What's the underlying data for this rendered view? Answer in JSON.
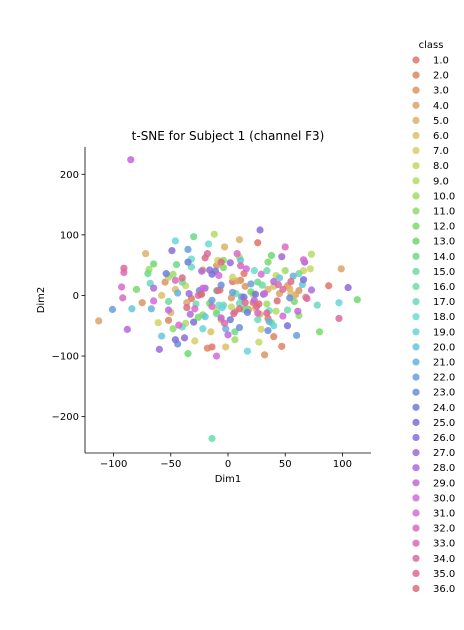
{
  "chart_data": {
    "type": "scatter",
    "title": "t-SNE for Subject 1 (channel F3)",
    "xlabel": "Dim1",
    "ylabel": "Dim2",
    "xlim": [
      -125,
      125
    ],
    "ylim": [
      -260,
      245
    ],
    "xticks": [
      -100,
      -50,
      0,
      50,
      100
    ],
    "yticks": [
      -200,
      -100,
      0,
      100,
      200
    ],
    "grid": false,
    "legend": {
      "title": "class",
      "placement": "right",
      "entries": [
        "1.0",
        "2.0",
        "3.0",
        "4.0",
        "5.0",
        "6.0",
        "7.0",
        "8.0",
        "9.0",
        "10.0",
        "11.0",
        "12.0",
        "13.0",
        "14.0",
        "15.0",
        "16.0",
        "17.0",
        "18.0",
        "19.0",
        "20.0",
        "21.0",
        "22.0",
        "23.0",
        "24.0",
        "25.0",
        "26.0",
        "27.0",
        "28.0",
        "29.0",
        "30.0",
        "31.0",
        "32.0",
        "33.0",
        "34.0",
        "35.0",
        "36.0"
      ],
      "colors": [
        "#e1746a",
        "#dd8560",
        "#da9563",
        "#dca269",
        "#dcb268",
        "#dac266",
        "#d3d168",
        "#c6d868",
        "#b3db66",
        "#9fdc66",
        "#8bdd68",
        "#7ad96b",
        "#6dd873",
        "#6bd98a",
        "#6dd99c",
        "#6ddcad",
        "#6ad9bf",
        "#6adccf",
        "#67d5dc",
        "#66c6dc",
        "#66b3da",
        "#67a0da",
        "#6a8ddb",
        "#6d7dd9",
        "#7b6fd9",
        "#8a6bda",
        "#9d68d9",
        "#b168db",
        "#c267da",
        "#d169d9",
        "#d86ad0",
        "#da6ac1",
        "#da6aae",
        "#da6a9c",
        "#db6a8b",
        "#dd6b7b"
      ]
    },
    "series": [
      {
        "name": "1.0",
        "x": [
          -32,
          26,
          4,
          -7,
          35,
          88,
          22,
          14,
          -14
        ],
        "y": [
          -5,
          87,
          23,
          9,
          -38,
          16,
          -12,
          36,
          -85
        ]
      },
      {
        "name": "2.0",
        "x": [
          47,
          68,
          -18,
          40,
          -52,
          11,
          -24,
          6
        ],
        "y": [
          -84,
          -3,
          -87,
          -68,
          -41,
          25,
          2,
          -27
        ]
      },
      {
        "name": "3.0",
        "x": [
          -75,
          32,
          -55,
          62,
          3,
          15,
          -10,
          52
        ],
        "y": [
          -12,
          -98,
          22,
          8,
          -4,
          15,
          49,
          16
        ]
      },
      {
        "name": "4.0",
        "x": [
          -113,
          99,
          -22,
          45,
          8,
          -36,
          18,
          59
        ],
        "y": [
          -42,
          44,
          42,
          3,
          24,
          -12,
          -23,
          1
        ]
      },
      {
        "name": "5.0",
        "x": [
          -72,
          10,
          -3,
          -50,
          28,
          35,
          -6,
          54
        ],
        "y": [
          69,
          92,
          80,
          -28,
          -31,
          10,
          -40,
          11
        ]
      },
      {
        "name": "6.0",
        "x": [
          -58,
          -2,
          -15,
          55,
          40,
          24,
          -46
        ],
        "y": [
          0,
          -85,
          -60,
          3,
          15,
          -21,
          10
        ]
      },
      {
        "name": "7.0",
        "x": [
          -61,
          4,
          29,
          -29,
          66,
          12,
          -9
        ],
        "y": [
          -45,
          30,
          -56,
          -75,
          41,
          -5,
          58
        ]
      },
      {
        "name": "8.0",
        "x": [
          72,
          -10,
          27,
          42,
          -37,
          3
        ],
        "y": [
          44,
          -25,
          -77,
          33,
          16,
          -19
        ]
      },
      {
        "name": "9.0",
        "x": [
          -12,
          73,
          42,
          -37,
          10,
          -52
        ],
        "y": [
          101,
          68,
          -26,
          -46,
          63,
          30
        ]
      },
      {
        "name": "10.0",
        "x": [
          50,
          6,
          -69,
          34,
          -48,
          22
        ],
        "y": [
          41,
          -73,
          43,
          -14,
          35,
          2
        ]
      },
      {
        "name": "11.0",
        "x": [
          -48,
          38,
          62,
          -22,
          16,
          -4
        ],
        "y": [
          -55,
          -45,
          -33,
          -32,
          -22,
          58
        ]
      },
      {
        "name": "12.0",
        "x": [
          80,
          -80,
          58,
          -4,
          -26,
          35
        ],
        "y": [
          -60,
          10,
          -10,
          46,
          -36,
          55
        ]
      },
      {
        "name": "13.0",
        "x": [
          -35,
          113,
          -65,
          38,
          20,
          -16
        ],
        "y": [
          -96,
          -7,
          52,
          66,
          6,
          -13
        ]
      },
      {
        "name": "14.0",
        "x": [
          -45,
          -70,
          -30,
          26,
          6,
          -10
        ],
        "y": [
          51,
          36,
          97,
          22,
          -60,
          -30
        ]
      },
      {
        "name": "15.0",
        "x": [
          -40,
          30,
          -52,
          14,
          -10,
          62
        ],
        "y": [
          22,
          17,
          -10,
          -23,
          8,
          36
        ]
      },
      {
        "name": "16.0",
        "x": [
          -14,
          34,
          52,
          -28,
          7,
          -4
        ],
        "y": [
          -236,
          41,
          -24,
          -14,
          3,
          -16
        ]
      },
      {
        "name": "17.0",
        "x": [
          -32,
          -68,
          10,
          78,
          -40,
          26
        ],
        "y": [
          47,
          20,
          -13,
          -16,
          -52,
          -40
        ]
      },
      {
        "name": "18.0",
        "x": [
          -17,
          -32,
          23,
          -8,
          36,
          12
        ],
        "y": [
          85,
          60,
          41,
          -16,
          -25,
          -4
        ]
      },
      {
        "name": "19.0",
        "x": [
          97,
          -46,
          -5,
          40,
          17,
          -22
        ],
        "y": [
          -12,
          90,
          -20,
          -50,
          -92,
          -55
        ]
      },
      {
        "name": "20.0",
        "x": [
          -84,
          -58,
          11,
          65,
          -20,
          45
        ],
        "y": [
          -22,
          -67,
          58,
          18,
          -35,
          29
        ]
      },
      {
        "name": "21.0",
        "x": [
          -67,
          -44,
          57,
          36,
          -2,
          12
        ],
        "y": [
          -22,
          4,
          32,
          -43,
          -55,
          -2
        ]
      },
      {
        "name": "22.0",
        "x": [
          -101,
          -35,
          60,
          20,
          -14,
          4
        ],
        "y": [
          -23,
          76,
          -66,
          19,
          -8,
          5
        ]
      },
      {
        "name": "23.0",
        "x": [
          -44,
          35,
          10,
          -25,
          54,
          -6
        ],
        "y": [
          -80,
          -58,
          -53,
          8,
          -4,
          17
        ]
      },
      {
        "name": "24.0",
        "x": [
          -35,
          -54,
          31,
          2,
          17,
          -11
        ],
        "y": [
          55,
          36,
          2,
          -40,
          -28,
          40
        ]
      },
      {
        "name": "25.0",
        "x": [
          -46,
          52,
          -14,
          24,
          66,
          -30
        ],
        "y": [
          -73,
          -50,
          35,
          2,
          26,
          -44
        ]
      },
      {
        "name": "26.0",
        "x": [
          -38,
          -49,
          28,
          105,
          14,
          -16
        ],
        "y": [
          -70,
          74,
          108,
          13,
          -3,
          42
        ]
      },
      {
        "name": "27.0",
        "x": [
          -60,
          2,
          67,
          -34,
          47,
          -20
        ],
        "y": [
          -89,
          54,
          55,
          3,
          64,
          12
        ]
      },
      {
        "name": "28.0",
        "x": [
          -88,
          -65,
          -33,
          -23,
          40,
          73
        ],
        "y": [
          -56,
          12,
          -31,
          40,
          23,
          9
        ]
      },
      {
        "name": "29.0",
        "x": [
          -85,
          -52,
          0,
          23,
          -6,
          61
        ],
        "y": [
          224,
          -24,
          -65,
          -8,
          -37,
          -26
        ]
      },
      {
        "name": "30.0",
        "x": [
          -65,
          48,
          16,
          -10,
          32,
          -22
        ],
        "y": [
          -9,
          -34,
          44,
          -100,
          3,
          12
        ]
      },
      {
        "name": "31.0",
        "x": [
          -93,
          66,
          -43,
          29,
          -8,
          -29
        ],
        "y": [
          14,
          59,
          -49,
          35,
          33,
          -22
        ]
      },
      {
        "name": "32.0",
        "x": [
          -92,
          8,
          50,
          -14,
          26,
          -46
        ],
        "y": [
          -4,
          69,
          80,
          -18,
          -29,
          25
        ]
      },
      {
        "name": "33.0",
        "x": [
          -91,
          69,
          11,
          -26,
          44,
          -3
        ],
        "y": [
          38,
          -5,
          49,
          0,
          18,
          -46
        ]
      },
      {
        "name": "34.0",
        "x": [
          -91,
          25,
          -18,
          48,
          5,
          97
        ],
        "y": [
          45,
          -18,
          69,
          10,
          -30,
          -38
        ]
      },
      {
        "name": "35.0",
        "x": [
          -20,
          34,
          -9,
          55,
          -36,
          15
        ],
        "y": [
          62,
          -29,
          8,
          23,
          -20,
          -12
        ]
      },
      {
        "name": "36.0",
        "x": [
          -6,
          27,
          -40,
          43,
          10,
          -23
        ],
        "y": [
          55,
          -14,
          29,
          -9,
          -22,
          2
        ]
      }
    ]
  }
}
